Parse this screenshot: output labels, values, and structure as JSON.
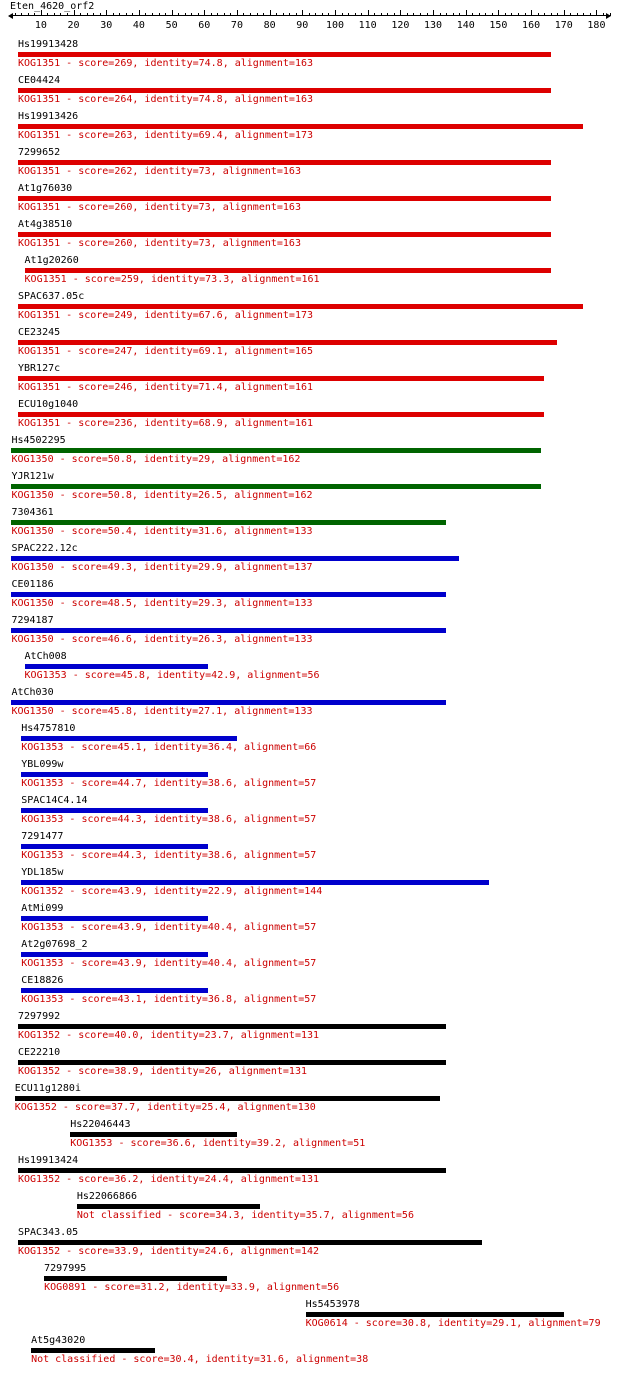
{
  "query": {
    "name": "Eten_4620_orf2",
    "axis_ticks": [
      10,
      20,
      30,
      40,
      50,
      60,
      70,
      80,
      90,
      100,
      110,
      120,
      130,
      140,
      150,
      160,
      170,
      180
    ]
  },
  "colors": {
    "red": "#dd0000",
    "green": "#006400",
    "blue": "#0000cc",
    "black": "#000000"
  },
  "hits": [
    {
      "name": "Hs19913428",
      "label": "KOG1351 - score=269, identity=74.8, alignment=163",
      "start": 3,
      "end": 166,
      "color": "red"
    },
    {
      "name": "CE04424",
      "label": "KOG1351 - score=264, identity=74.8, alignment=163",
      "start": 3,
      "end": 166,
      "color": "red"
    },
    {
      "name": "Hs19913426",
      "label": "KOG1351 - score=263, identity=69.4, alignment=173",
      "start": 3,
      "end": 176,
      "color": "red"
    },
    {
      "name": "7299652",
      "label": "KOG1351 - score=262, identity=73, alignment=163",
      "start": 3,
      "end": 166,
      "color": "red"
    },
    {
      "name": "At1g76030",
      "label": "KOG1351 - score=260, identity=73, alignment=163",
      "start": 3,
      "end": 166,
      "color": "red"
    },
    {
      "name": "At4g38510",
      "label": "KOG1351 - score=260, identity=73, alignment=163",
      "start": 3,
      "end": 166,
      "color": "red"
    },
    {
      "name": "At1g20260",
      "label": "KOG1351 - score=259, identity=73.3, alignment=161",
      "start": 5,
      "end": 166,
      "color": "red"
    },
    {
      "name": "SPAC637.05c",
      "label": "KOG1351 - score=249, identity=67.6, alignment=173",
      "start": 3,
      "end": 176,
      "color": "red"
    },
    {
      "name": "CE23245",
      "label": "KOG1351 - score=247, identity=69.1, alignment=165",
      "start": 3,
      "end": 168,
      "color": "red"
    },
    {
      "name": "YBR127c",
      "label": "KOG1351 - score=246, identity=71.4, alignment=161",
      "start": 3,
      "end": 164,
      "color": "red"
    },
    {
      "name": "ECU10g1040",
      "label": "KOG1351 - score=236, identity=68.9, alignment=161",
      "start": 3,
      "end": 164,
      "color": "red"
    },
    {
      "name": "Hs4502295",
      "label": "KOG1350 - score=50.8, identity=29, alignment=162",
      "start": 1,
      "end": 163,
      "color": "green"
    },
    {
      "name": "YJR121w",
      "label": "KOG1350 - score=50.8, identity=26.5, alignment=162",
      "start": 1,
      "end": 163,
      "color": "green"
    },
    {
      "name": "7304361",
      "label": "KOG1350 - score=50.4, identity=31.6, alignment=133",
      "start": 1,
      "end": 134,
      "color": "green"
    },
    {
      "name": "SPAC222.12c",
      "label": "KOG1350 - score=49.3, identity=29.9, alignment=137",
      "start": 1,
      "end": 138,
      "color": "blue"
    },
    {
      "name": "CE01186",
      "label": "KOG1350 - score=48.5, identity=29.3, alignment=133",
      "start": 1,
      "end": 134,
      "color": "blue"
    },
    {
      "name": "7294187",
      "label": "KOG1350 - score=46.6, identity=26.3, alignment=133",
      "start": 1,
      "end": 134,
      "color": "blue"
    },
    {
      "name": "AtCh008",
      "label": "KOG1353 - score=45.8, identity=42.9, alignment=56",
      "start": 5,
      "end": 61,
      "color": "blue"
    },
    {
      "name": "AtCh030",
      "label": "KOG1350 - score=45.8, identity=27.1, alignment=133",
      "start": 1,
      "end": 134,
      "color": "blue"
    },
    {
      "name": "Hs4757810",
      "label": "KOG1353 - score=45.1, identity=36.4, alignment=66",
      "start": 4,
      "end": 70,
      "color": "blue"
    },
    {
      "name": "YBL099w",
      "label": "KOG1353 - score=44.7, identity=38.6, alignment=57",
      "start": 4,
      "end": 61,
      "color": "blue"
    },
    {
      "name": "SPAC14C4.14",
      "label": "KOG1353 - score=44.3, identity=38.6, alignment=57",
      "start": 4,
      "end": 61,
      "color": "blue"
    },
    {
      "name": "7291477",
      "label": "KOG1353 - score=44.3, identity=38.6, alignment=57",
      "start": 4,
      "end": 61,
      "color": "blue"
    },
    {
      "name": "YDL185w",
      "label": "KOG1352 - score=43.9, identity=22.9, alignment=144",
      "start": 4,
      "end": 147,
      "color": "blue"
    },
    {
      "name": "AtMi099",
      "label": "KOG1353 - score=43.9, identity=40.4, alignment=57",
      "start": 4,
      "end": 61,
      "color": "blue"
    },
    {
      "name": "At2g07698_2",
      "label": "KOG1353 - score=43.9, identity=40.4, alignment=57",
      "start": 4,
      "end": 61,
      "color": "blue"
    },
    {
      "name": "CE18826",
      "label": "KOG1353 - score=43.1, identity=36.8, alignment=57",
      "start": 4,
      "end": 61,
      "color": "blue"
    },
    {
      "name": "7297992",
      "label": "KOG1352 - score=40.0, identity=23.7, alignment=131",
      "start": 3,
      "end": 134,
      "color": "black"
    },
    {
      "name": "CE22210",
      "label": "KOG1352 - score=38.9, identity=26, alignment=131",
      "start": 3,
      "end": 134,
      "color": "black"
    },
    {
      "name": "ECU11g1280i",
      "label": "KOG1352 - score=37.7, identity=25.4, alignment=130",
      "start": 2,
      "end": 132,
      "color": "black"
    },
    {
      "name": "Hs22046443",
      "label": "KOG1353 - score=36.6, identity=39.2, alignment=51",
      "start": 19,
      "end": 70,
      "color": "black"
    },
    {
      "name": "Hs19913424",
      "label": "KOG1352 - score=36.2, identity=24.4, alignment=131",
      "start": 3,
      "end": 134,
      "color": "black"
    },
    {
      "name": "Hs22066866",
      "label": "Not classified - score=34.3, identity=35.7, alignment=56",
      "start": 21,
      "end": 77,
      "color": "black"
    },
    {
      "name": "SPAC343.05",
      "label": "KOG1352 - score=33.9, identity=24.6, alignment=142",
      "start": 3,
      "end": 145,
      "color": "black"
    },
    {
      "name": "7297995",
      "label": "KOG0891 - score=31.2, identity=33.9, alignment=56",
      "start": 11,
      "end": 67,
      "color": "black"
    },
    {
      "name": "Hs5453978",
      "label": "KOG0614 - score=30.8, identity=29.1, alignment=79",
      "start": 91,
      "end": 170,
      "color": "black"
    },
    {
      "name": "At5g43020",
      "label": "Not classified - score=30.4, identity=31.6, alignment=38",
      "start": 7,
      "end": 45,
      "color": "black"
    }
  ]
}
